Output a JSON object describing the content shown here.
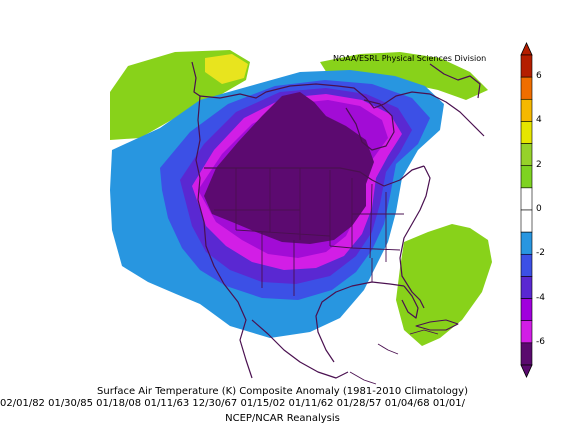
{
  "credit": "NOAA/ESRL Physical Sciences Division",
  "caption": {
    "title": "Surface Air Temperature (K) Composite Anomaly (1981-2010 Climatology)",
    "dates": "02/01/82 01/30/85 01/18/08 01/11/63 12/30/67 01/15/02 01/11/62 01/28/57 01/04/68 01/01/",
    "source": "NCEP/NCAR Reanalysis"
  },
  "colorbar": {
    "ticks": [
      "6",
      "4",
      "2",
      "0",
      "-2",
      "-4",
      "-6"
    ],
    "colors": [
      "#b41e00",
      "#f06e00",
      "#f5b800",
      "#e6e600",
      "#96d22a",
      "#7ed321",
      "#ffffff",
      "#ffffff",
      "#2896e0",
      "#3c50e6",
      "#5a28d2",
      "#a000dc",
      "#d21ee6",
      "#5a0a6e"
    ]
  },
  "palette": {
    "deep": "#5c0a70",
    "purple": "#a20cd6",
    "magenta": "#d21ee6",
    "violet": "#5a28d2",
    "blue": "#3c50e6",
    "lightblue": "#2896e0",
    "green": "#88d21a",
    "yellow": "#e8e41e",
    "outline": "#4a1050"
  }
}
